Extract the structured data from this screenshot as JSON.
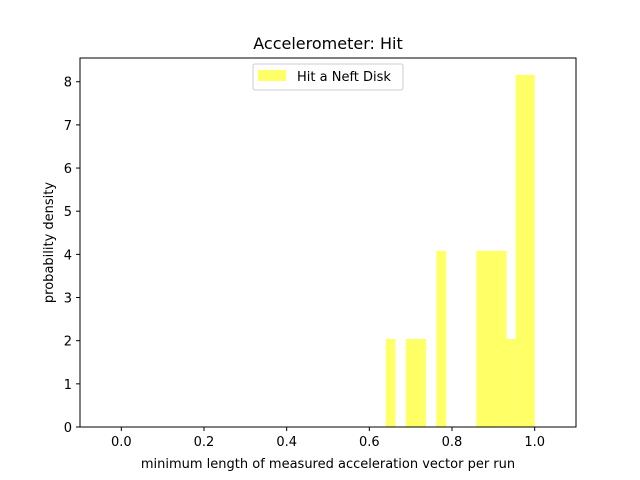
{
  "chart_data": {
    "type": "bar",
    "title": "Accelerometer: Hit",
    "xlabel": "minimum length of measured acceleration vector per run",
    "ylabel": "probability density",
    "xlim": [
      -0.1,
      1.1
    ],
    "ylim": [
      0,
      8.55
    ],
    "x_ticks": [
      0.0,
      0.2,
      0.4,
      0.6,
      0.8,
      1.0
    ],
    "x_tick_labels": [
      "0.0",
      "0.2",
      "0.4",
      "0.6",
      "0.8",
      "1.0"
    ],
    "y_ticks": [
      0,
      1,
      2,
      3,
      4,
      5,
      6,
      7,
      8
    ],
    "y_tick_labels": [
      "0",
      "1",
      "2",
      "3",
      "4",
      "5",
      "6",
      "7",
      "8"
    ],
    "grid": false,
    "legend_position": "top-center",
    "bar_color": "#ffff66",
    "series": [
      {
        "name": "Hit a Neft Disk",
        "bins": [
          {
            "x0": 0.64,
            "x1": 0.663,
            "value": 2.04
          },
          {
            "x0": 0.688,
            "x1": 0.737,
            "value": 2.04
          },
          {
            "x0": 0.762,
            "x1": 0.786,
            "value": 4.08
          },
          {
            "x0": 0.859,
            "x1": 0.932,
            "value": 4.08
          },
          {
            "x0": 0.932,
            "x1": 0.954,
            "value": 2.04
          },
          {
            "x0": 0.954,
            "x1": 1.0,
            "value": 8.16
          }
        ]
      }
    ]
  }
}
